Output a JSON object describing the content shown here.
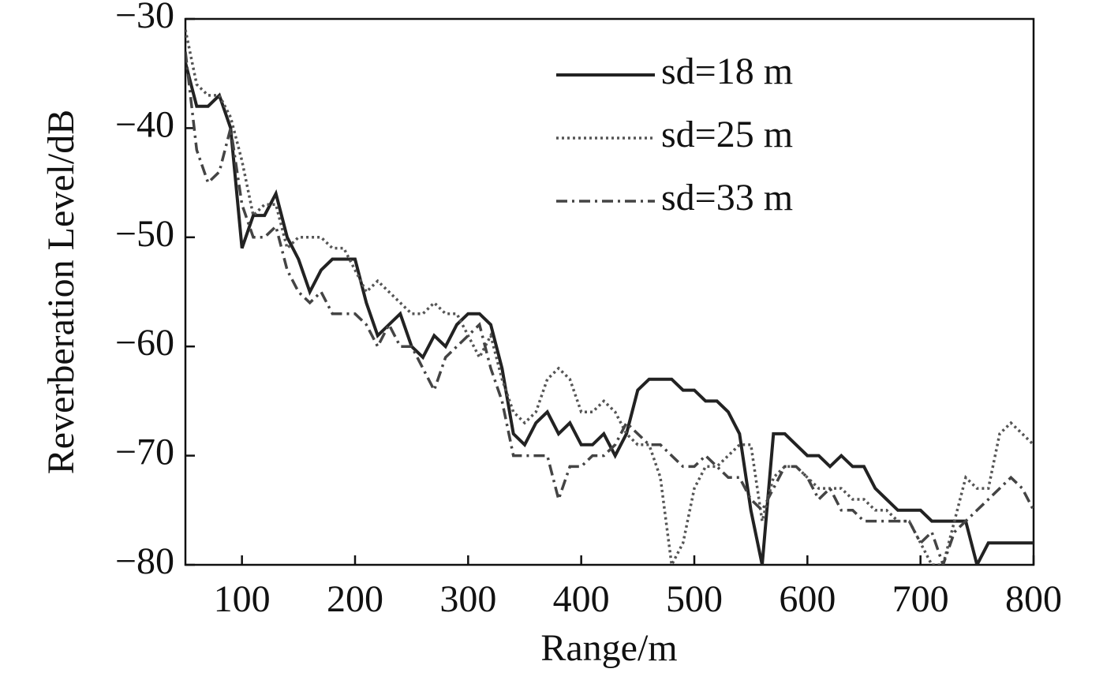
{
  "chart_data": {
    "type": "line",
    "xlabel": "Range/m",
    "ylabel": "Reverberation Level/dB",
    "x": [
      50,
      60,
      70,
      80,
      90,
      100,
      110,
      120,
      130,
      140,
      150,
      160,
      170,
      180,
      190,
      200,
      210,
      220,
      230,
      240,
      250,
      260,
      270,
      280,
      290,
      300,
      310,
      320,
      330,
      340,
      350,
      360,
      370,
      380,
      390,
      400,
      410,
      420,
      430,
      440,
      450,
      460,
      470,
      480,
      490,
      500,
      510,
      520,
      530,
      540,
      550,
      560,
      570,
      580,
      590,
      600,
      610,
      620,
      630,
      640,
      650,
      660,
      670,
      680,
      690,
      700,
      710,
      720,
      730,
      740,
      750,
      760,
      770,
      780,
      790,
      800
    ],
    "series": [
      {
        "name": "sd=18 m",
        "color": "#222222",
        "dash": "solid",
        "values": [
          -34,
          -38,
          -38,
          -37,
          -40,
          -51,
          -48,
          -48,
          -46,
          -50,
          -52,
          -55,
          -53,
          -52,
          -52,
          -52,
          -56,
          -59,
          -58,
          -57,
          -60,
          -61,
          -59,
          -60,
          -58,
          -57,
          -57,
          -58,
          -62,
          -68,
          -69,
          -67,
          -66,
          -68,
          -67,
          -69,
          -69,
          -68,
          -70,
          -68,
          -64,
          -63,
          -63,
          -63,
          -64,
          -64,
          -65,
          -65,
          -66,
          -68,
          -75,
          -80,
          -68,
          -68,
          -69,
          -70,
          -70,
          -71,
          -70,
          -71,
          -71,
          -73,
          -74,
          -75,
          -75,
          -75,
          -76,
          -76,
          -76,
          -76,
          -80,
          -78,
          -78,
          -78,
          -78,
          -78
        ]
      },
      {
        "name": "sd=25 m",
        "color": "#555555",
        "dash": "dotted",
        "values": [
          -31,
          -36,
          -37,
          -37,
          -39,
          -43,
          -48,
          -47,
          -47,
          -51,
          -50,
          -50,
          -50,
          -51,
          -51,
          -53,
          -55,
          -54,
          -55,
          -56,
          -57,
          -57,
          -56,
          -57,
          -57,
          -59,
          -61,
          -59,
          -63,
          -66,
          -67,
          -66,
          -63,
          -62,
          -63,
          -66,
          -66,
          -65,
          -66,
          -68,
          -69,
          -69,
          -72,
          -80,
          -78,
          -73,
          -71,
          -71,
          -70,
          -69,
          -69,
          -76,
          -72,
          -71,
          -71,
          -72,
          -73,
          -73,
          -73,
          -74,
          -74,
          -75,
          -75,
          -76,
          -76,
          -78,
          -80,
          -80,
          -76,
          -72,
          -73,
          -73,
          -68,
          -67,
          -68,
          -69
        ]
      },
      {
        "name": "sd=33 m",
        "color": "#444444",
        "dash": "dashdot",
        "values": [
          -33,
          -42,
          -45,
          -44,
          -40,
          -47,
          -50,
          -50,
          -49,
          -53,
          -55,
          -56,
          -55,
          -57,
          -57,
          -57,
          -58,
          -60,
          -58,
          -60,
          -60,
          -62,
          -64,
          -61,
          -60,
          -59,
          -58,
          -62,
          -65,
          -70,
          -70,
          -70,
          -70,
          -74,
          -71,
          -71,
          -70,
          -70,
          -69,
          -67,
          -68,
          -69,
          -69,
          -70,
          -71,
          -71,
          -70,
          -71,
          -72,
          -72,
          -74,
          -75,
          -73,
          -71,
          -71,
          -72,
          -74,
          -73,
          -75,
          -75,
          -76,
          -76,
          -76,
          -76,
          -76,
          -78,
          -77,
          -80,
          -77,
          -76,
          -75,
          -74,
          -73,
          -72,
          -73,
          -75
        ]
      }
    ],
    "xlim": [
      50,
      800
    ],
    "ylim": [
      -80,
      -30
    ],
    "xticks": [
      100,
      200,
      300,
      400,
      500,
      600,
      700,
      800
    ],
    "yticks": [
      {
        "value": -80,
        "label": "−80"
      },
      {
        "value": -70,
        "label": "−70"
      },
      {
        "value": -60,
        "label": "−60"
      },
      {
        "value": -50,
        "label": "−50"
      },
      {
        "value": -40,
        "label": "−40"
      },
      {
        "value": -30,
        "label": "−30"
      }
    ],
    "legend": "upper center"
  }
}
